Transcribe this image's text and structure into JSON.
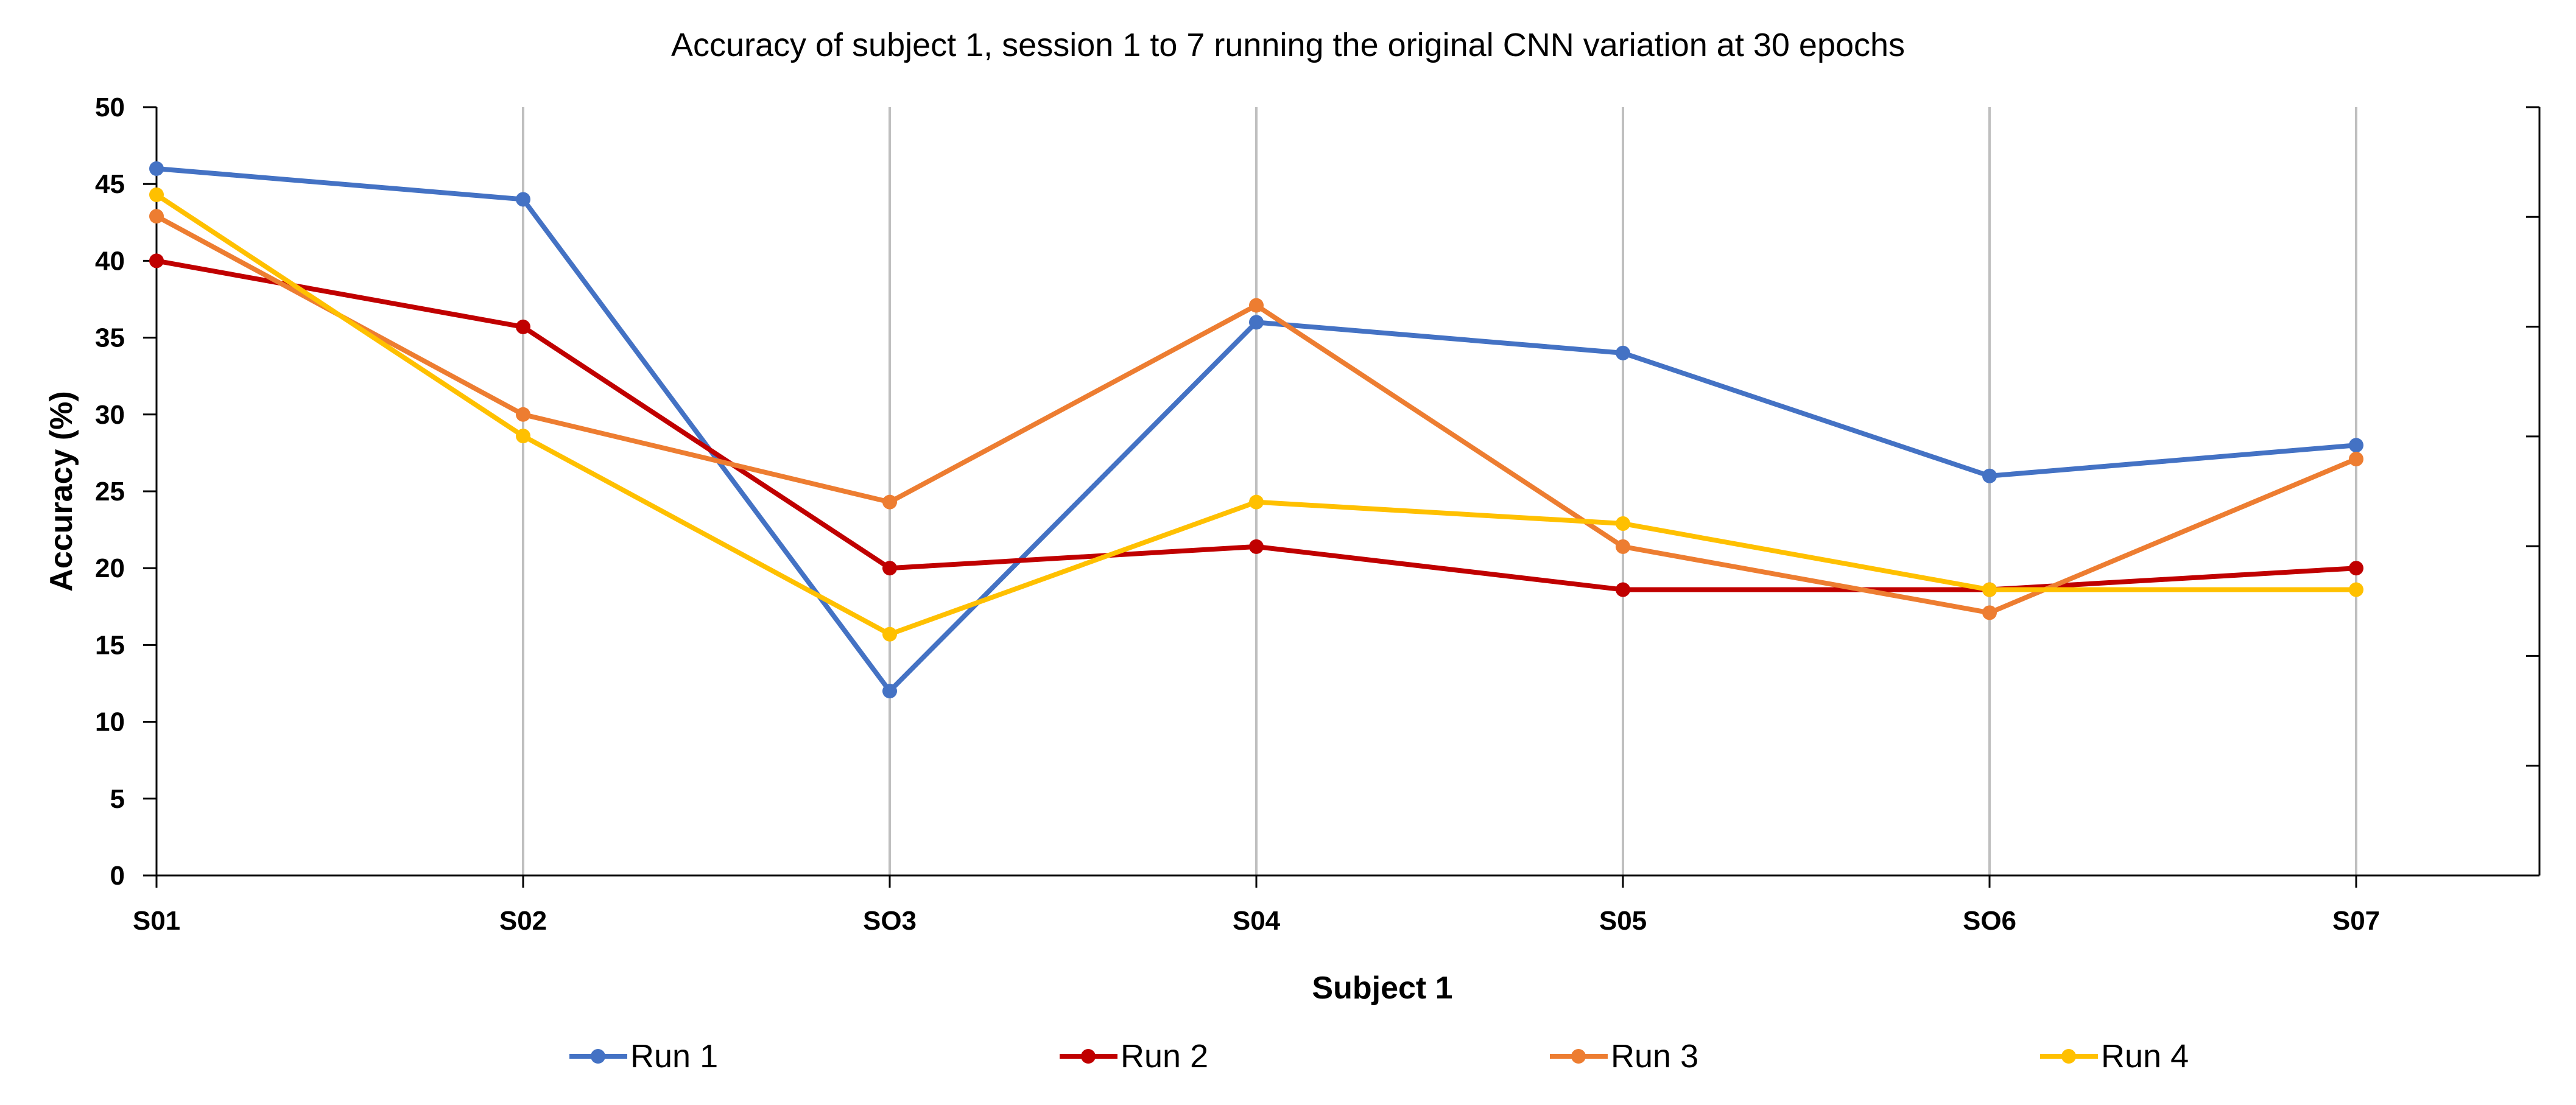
{
  "chart_data": {
    "type": "line",
    "title": "Accuracy of subject 1, session 1 to 7 running the original CNN variation at 30 epochs",
    "xlabel": "Subject 1",
    "ylabel": "Accuracy (%)",
    "categories": [
      "S01",
      "S02",
      "SO3",
      "S04",
      "S05",
      "SO6",
      "S07"
    ],
    "ylim": [
      0,
      50
    ],
    "yticks": [
      0,
      5,
      10,
      15,
      20,
      25,
      30,
      35,
      40,
      45,
      50
    ],
    "grid": "vertical",
    "legend_position": "bottom",
    "series": [
      {
        "name": "Run 1",
        "color": "#4472C4",
        "values": [
          46.0,
          44.0,
          12.0,
          36.0,
          34.0,
          26.0,
          28.0
        ]
      },
      {
        "name": "Run 2",
        "color": "#C00000",
        "values": [
          40.0,
          35.7,
          20.0,
          21.4,
          18.6,
          18.6,
          20.0
        ]
      },
      {
        "name": "Run 3",
        "color": "#ED7D31",
        "values": [
          42.9,
          30.0,
          24.3,
          37.1,
          21.4,
          17.1,
          27.1
        ]
      },
      {
        "name": "Run 4",
        "color": "#FFC000",
        "values": [
          44.3,
          28.6,
          15.7,
          24.3,
          22.9,
          18.6,
          18.6
        ]
      }
    ]
  }
}
